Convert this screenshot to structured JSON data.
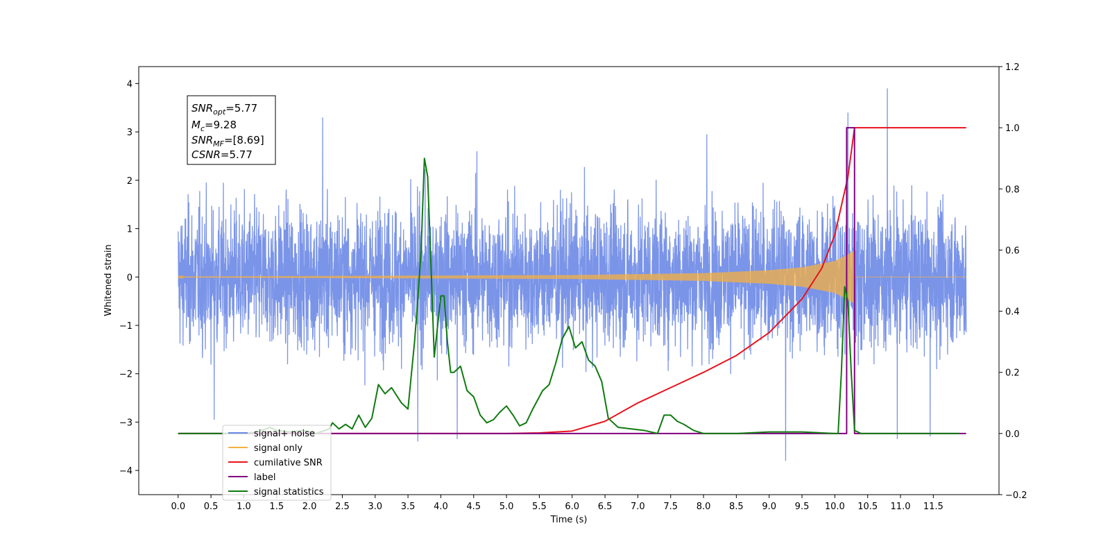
{
  "chart_data": {
    "type": "line",
    "xlabel": "Time (s)",
    "ylabel": "Whitened strain",
    "y2label": "",
    "xlim": [
      -0.6,
      12.5
    ],
    "ylim": [
      -4.5,
      4.35
    ],
    "y2lim": [
      -0.2,
      1.2
    ],
    "x_ticks": [
      0.0,
      0.5,
      1.0,
      1.5,
      2.0,
      2.5,
      3.0,
      3.5,
      4.0,
      4.5,
      5.0,
      5.5,
      6.0,
      6.5,
      7.0,
      7.5,
      8.0,
      8.5,
      9.0,
      9.5,
      10.0,
      10.5,
      11.0,
      11.5
    ],
    "x_tick_labels": [
      "0.0",
      "0.5",
      "1.0",
      "1.5",
      "2.0",
      "2.5",
      "3.0",
      "3.5",
      "4.0",
      "4.5",
      "5.0",
      "5.5",
      "6.0",
      "6.5",
      "7.0",
      "7.5",
      "8.0",
      "8.5",
      "9.0",
      "9.5",
      "10.0",
      "10.5",
      "11.0",
      "11.5"
    ],
    "y_ticks": [
      -4,
      -3,
      -2,
      -1,
      0,
      1,
      2,
      3,
      4
    ],
    "y_tick_labels": [
      "−4",
      "−3",
      "−2",
      "−1",
      "0",
      "1",
      "2",
      "3",
      "4"
    ],
    "y2_ticks": [
      -0.2,
      0.0,
      0.2,
      0.4,
      0.6,
      0.8,
      1.0,
      1.2
    ],
    "y2_tick_labels": [
      "−0.2",
      "0.0",
      "0.2",
      "0.4",
      "0.6",
      "0.8",
      "1.0",
      "1.2"
    ],
    "grid": false,
    "legend_placement": "lower-left",
    "annotation": {
      "snr_opt": "=5.77",
      "mc": "=9.28",
      "snr_mf": "=[8.69]",
      "csnr": "=5.77"
    },
    "series": [
      {
        "name": "signal+ noise",
        "axis": "left",
        "color": "#6b88e6",
        "style": "noise",
        "x_range": [
          0.0,
          12.0
        ],
        "envelope": [
          2.5,
          -2.5
        ],
        "peaks": [
          [
            0.55,
            -2.95
          ],
          [
            2.2,
            3.3
          ],
          [
            3.65,
            -3.4
          ],
          [
            4.25,
            -3.35
          ],
          [
            4.55,
            2.6
          ],
          [
            8.05,
            2.95
          ],
          [
            9.25,
            -3.8
          ],
          [
            10.2,
            3.4
          ],
          [
            10.8,
            3.9
          ],
          [
            10.95,
            -3.35
          ],
          [
            11.45,
            -3.3
          ]
        ]
      },
      {
        "name": "signal only",
        "axis": "left",
        "color": "#f5b041",
        "style": "chirp",
        "x_range": [
          0.0,
          10.3
        ],
        "amplitude": [
          [
            0.0,
            0.01
          ],
          [
            6.0,
            0.04
          ],
          [
            8.0,
            0.08
          ],
          [
            9.0,
            0.14
          ],
          [
            9.5,
            0.2
          ],
          [
            10.0,
            0.33
          ],
          [
            10.2,
            0.47
          ],
          [
            10.3,
            0.55
          ]
        ]
      },
      {
        "name": "cumilative SNR",
        "axis": "right",
        "color": "#e8121c",
        "x": [
          0.0,
          5.0,
          5.5,
          6.0,
          6.5,
          7.0,
          7.5,
          8.0,
          8.5,
          9.0,
          9.5,
          9.8,
          10.0,
          10.2,
          10.3,
          12.0
        ],
        "values": [
          0.0,
          0.0,
          0.002,
          0.008,
          0.04,
          0.1,
          0.15,
          0.2,
          0.255,
          0.33,
          0.44,
          0.54,
          0.65,
          0.84,
          1.0,
          1.0
        ]
      },
      {
        "name": "label",
        "axis": "right",
        "color": "#800080",
        "x": [
          0.0,
          10.18,
          10.18,
          10.3,
          10.3,
          12.0
        ],
        "values": [
          0.0,
          0.0,
          1.0,
          1.0,
          0.0,
          0.0
        ]
      },
      {
        "name": "signal statistics",
        "axis": "right",
        "color": "#0f7a0f",
        "x": [
          0.0,
          1.0,
          1.2,
          1.4,
          1.5,
          1.7,
          1.9,
          2.1,
          2.3,
          2.35,
          2.45,
          2.55,
          2.65,
          2.75,
          2.85,
          2.95,
          3.05,
          3.15,
          3.25,
          3.4,
          3.5,
          3.6,
          3.65,
          3.7,
          3.75,
          3.8,
          3.85,
          3.9,
          4.0,
          4.05,
          4.1,
          4.15,
          4.2,
          4.3,
          4.4,
          4.5,
          4.6,
          4.7,
          4.8,
          4.9,
          5.0,
          5.1,
          5.2,
          5.3,
          5.4,
          5.55,
          5.65,
          5.75,
          5.85,
          5.95,
          6.05,
          6.15,
          6.25,
          6.35,
          6.45,
          6.55,
          6.7,
          6.9,
          7.1,
          7.3,
          7.4,
          7.5,
          7.6,
          7.7,
          7.85,
          8.0,
          8.5,
          9.0,
          9.5,
          10.0,
          10.05,
          10.1,
          10.15,
          10.2,
          10.25,
          10.3,
          10.4,
          11.0,
          11.9
        ],
        "values": [
          0.0,
          0.0,
          0.005,
          0.02,
          0.01,
          0.005,
          0.01,
          0.0,
          0.015,
          0.035,
          0.015,
          0.03,
          0.015,
          0.06,
          0.02,
          0.05,
          0.16,
          0.13,
          0.15,
          0.1,
          0.08,
          0.3,
          0.44,
          0.6,
          0.9,
          0.84,
          0.55,
          0.25,
          0.45,
          0.45,
          0.3,
          0.2,
          0.2,
          0.22,
          0.14,
          0.12,
          0.06,
          0.035,
          0.045,
          0.07,
          0.09,
          0.06,
          0.025,
          0.035,
          0.08,
          0.14,
          0.16,
          0.23,
          0.31,
          0.35,
          0.28,
          0.3,
          0.24,
          0.22,
          0.17,
          0.05,
          0.02,
          0.015,
          0.01,
          0.0,
          0.06,
          0.06,
          0.04,
          0.03,
          0.01,
          0.0,
          0.0,
          0.005,
          0.005,
          0.0,
          0.0,
          0.2,
          0.48,
          0.43,
          0.2,
          0.01,
          0.0,
          0.0,
          0.0
        ]
      }
    ]
  }
}
